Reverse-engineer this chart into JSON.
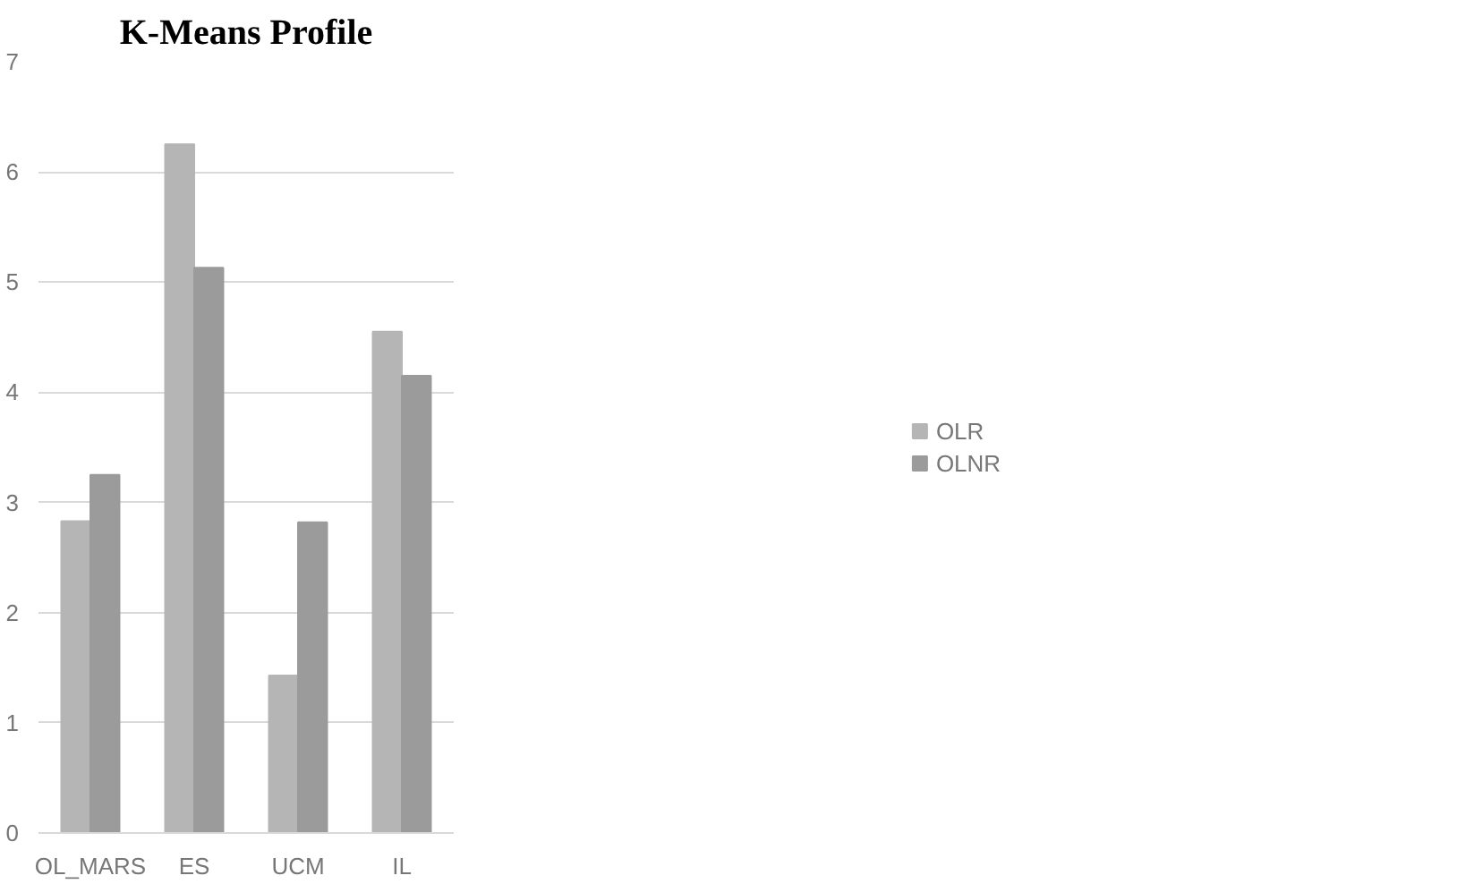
{
  "chart_data": {
    "type": "bar",
    "title": "K-Means Profile",
    "categories": [
      "OL_MARS",
      "ES",
      "UCM",
      "IL"
    ],
    "series": [
      {
        "name": "OLR",
        "color": "#b5b5b5",
        "values": [
          2.83,
          6.25,
          1.43,
          4.55
        ]
      },
      {
        "name": "OLNR",
        "color": "#9b9b9b",
        "values": [
          3.25,
          5.13,
          2.82,
          4.15
        ]
      }
    ],
    "ylim": [
      0,
      7
    ],
    "yticks": [
      0,
      1,
      2,
      3,
      4,
      5,
      6,
      7
    ],
    "grid": "y",
    "legend": "right"
  }
}
